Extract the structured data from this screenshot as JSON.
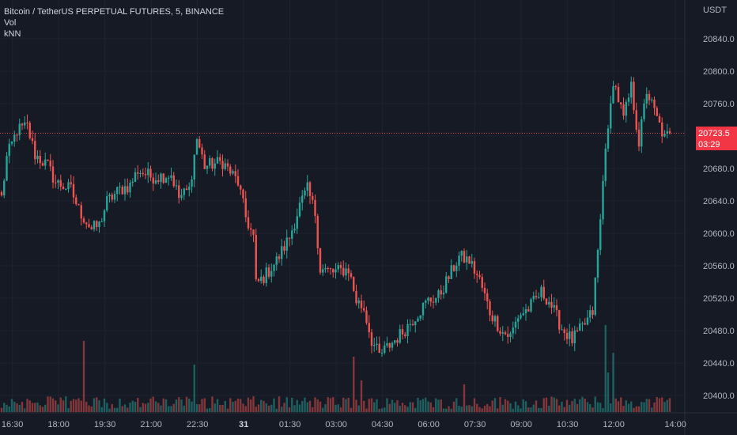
{
  "legend": {
    "symbol": "Bitcoin / TetherUS PERPETUAL FUTURES, 5, BINANCE",
    "vol": "Vol",
    "knn": "kNN"
  },
  "colors": {
    "background": "#161a25",
    "up": "#26a69a",
    "down": "#ef5350",
    "grid": "#1f2330",
    "tag": "#f23645"
  },
  "last_price": {
    "price": "20723.5",
    "countdown": "03:29"
  },
  "chart_data": {
    "type": "candlestick",
    "interval_minutes": 5,
    "currency": "USDT",
    "ylim": [
      20370,
      20870
    ],
    "yticks": [
      "20840.0",
      "20800.0",
      "20760.0",
      "20720.0",
      "20680.0",
      "20640.0",
      "20600.0",
      "20560.0",
      "20520.0",
      "20480.0",
      "20440.0",
      "20400.0"
    ],
    "ytick_values": [
      20840,
      20800,
      20760,
      20720,
      20680,
      20640,
      20600,
      20560,
      20520,
      20480,
      20440,
      20400
    ],
    "xticks": [
      {
        "label": "16:30",
        "min": 0
      },
      {
        "label": "18:00",
        "min": 90
      },
      {
        "label": "19:30",
        "min": 180
      },
      {
        "label": "21:00",
        "min": 270
      },
      {
        "label": "22:30",
        "min": 360
      },
      {
        "label": "31",
        "min": 450,
        "bold": true
      },
      {
        "label": "01:30",
        "min": 540
      },
      {
        "label": "03:00",
        "min": 630
      },
      {
        "label": "04:30",
        "min": 720
      },
      {
        "label": "06:00",
        "min": 810
      },
      {
        "label": "07:30",
        "min": 900
      },
      {
        "label": "09:00",
        "min": 990
      },
      {
        "label": "10:30",
        "min": 1080
      },
      {
        "label": "12:00",
        "min": 1170
      },
      {
        "label": "14:00",
        "min": 1290
      }
    ],
    "first_candle_offset_min": -21,
    "candle_count": 261,
    "close_anchors": [
      [
        0,
        20644
      ],
      [
        2,
        20693
      ],
      [
        6,
        20727
      ],
      [
        10,
        20732
      ],
      [
        13,
        20697
      ],
      [
        18,
        20683
      ],
      [
        21,
        20663
      ],
      [
        27,
        20654
      ],
      [
        30,
        20629
      ],
      [
        35,
        20605
      ],
      [
        38,
        20610
      ],
      [
        41,
        20639
      ],
      [
        46,
        20654
      ],
      [
        50,
        20659
      ],
      [
        53,
        20678
      ],
      [
        58,
        20670
      ],
      [
        61,
        20670
      ],
      [
        66,
        20673
      ],
      [
        69,
        20644
      ],
      [
        73,
        20654
      ],
      [
        76,
        20717
      ],
      [
        79,
        20683
      ],
      [
        86,
        20688
      ],
      [
        92,
        20663
      ],
      [
        95,
        20620
      ],
      [
        98,
        20595
      ],
      [
        99,
        20537
      ],
      [
        102,
        20546
      ],
      [
        107,
        20566
      ],
      [
        112,
        20595
      ],
      [
        116,
        20634
      ],
      [
        119,
        20654
      ],
      [
        122,
        20625
      ],
      [
        124,
        20556
      ],
      [
        129,
        20552
      ],
      [
        135,
        20556
      ],
      [
        138,
        20517
      ],
      [
        141,
        20507
      ],
      [
        144,
        20468
      ],
      [
        147,
        20449
      ],
      [
        150,
        20459
      ],
      [
        156,
        20478
      ],
      [
        161,
        20498
      ],
      [
        166,
        20517
      ],
      [
        170,
        20522
      ],
      [
        175,
        20552
      ],
      [
        178,
        20571
      ],
      [
        182,
        20566
      ],
      [
        186,
        20542
      ],
      [
        190,
        20503
      ],
      [
        195,
        20478
      ],
      [
        198,
        20473
      ],
      [
        201,
        20498
      ],
      [
        205,
        20507
      ],
      [
        210,
        20527
      ],
      [
        213,
        20517
      ],
      [
        218,
        20483
      ],
      [
        222,
        20468
      ],
      [
        227,
        20488
      ],
      [
        230,
        20503
      ],
      [
        233,
        20615
      ],
      [
        235,
        20712
      ],
      [
        236,
        20722
      ],
      [
        238,
        20790
      ],
      [
        242,
        20741
      ],
      [
        245,
        20780
      ],
      [
        248,
        20712
      ],
      [
        251,
        20776
      ],
      [
        255,
        20741
      ],
      [
        258,
        20717
      ],
      [
        260,
        20723.5
      ]
    ],
    "volume_spikes": [
      [
        32,
        90
      ],
      [
        75,
        60
      ],
      [
        137,
        70
      ],
      [
        235,
        110
      ],
      [
        238,
        75
      ],
      [
        236,
        50
      ],
      [
        140,
        40
      ],
      [
        180,
        35
      ]
    ]
  }
}
